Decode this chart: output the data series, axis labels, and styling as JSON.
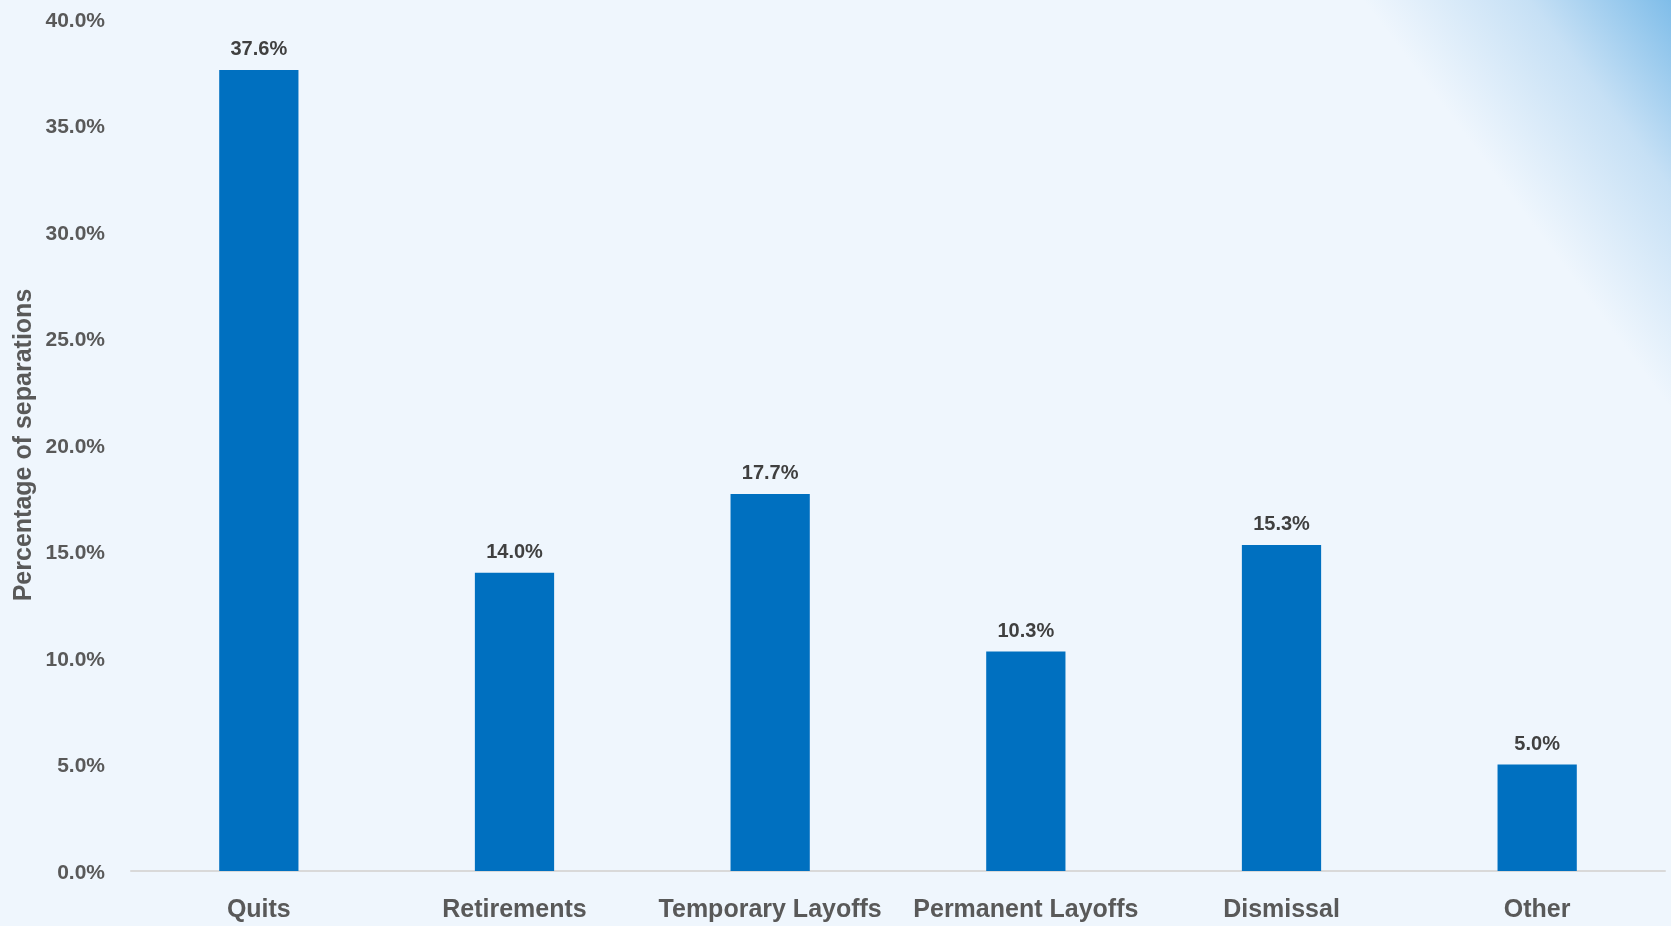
{
  "chart_data": {
    "type": "bar",
    "ylabel": "Percentage of separations",
    "categories": [
      "Quits",
      "Retirements",
      "Temporary Layoffs",
      "Permanent Layoffs",
      "Dismissal",
      "Other"
    ],
    "values": [
      37.6,
      14.0,
      17.7,
      10.3,
      15.3,
      5.0
    ],
    "color": "#0070c0",
    "value_labels": [
      "37.6%",
      "14.0%",
      "17.7%",
      "10.3%",
      "15.3%",
      "5.0%"
    ],
    "ylim": [
      0,
      40
    ],
    "yticks": [
      {
        "value": 0,
        "label": "0.0%"
      },
      {
        "value": 5,
        "label": "5.0%"
      },
      {
        "value": 10,
        "label": "10.0%"
      },
      {
        "value": 15,
        "label": "15.0%"
      },
      {
        "value": 20,
        "label": "20.0%"
      },
      {
        "value": 25,
        "label": "25.0%"
      },
      {
        "value": 30,
        "label": "30.0%"
      },
      {
        "value": 35,
        "label": "35.0%"
      },
      {
        "value": 40,
        "label": "40.0%"
      }
    ]
  }
}
